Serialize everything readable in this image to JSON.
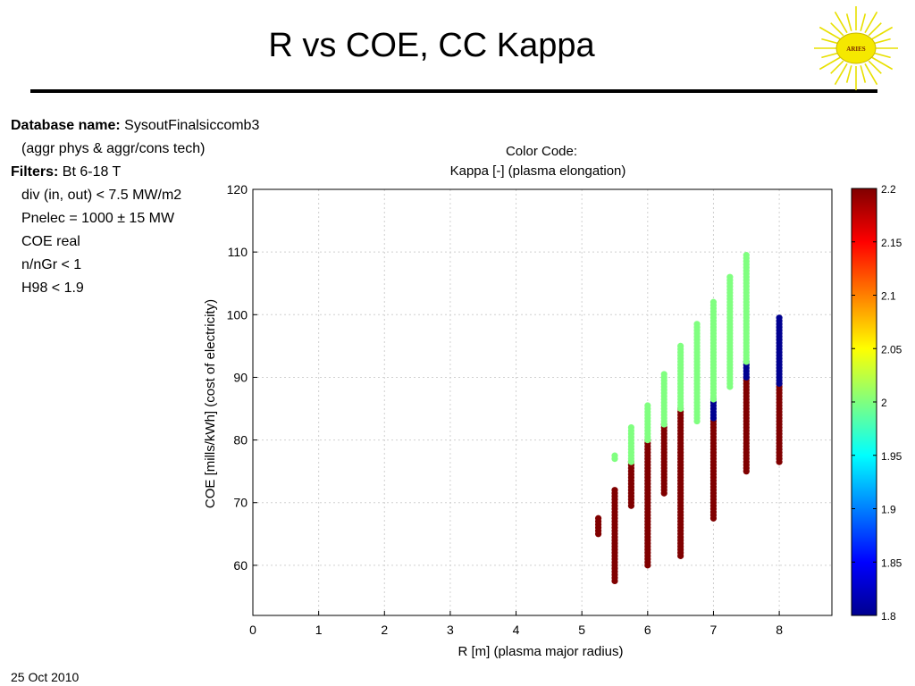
{
  "slide": {
    "title": "R vs COE, CC Kappa",
    "logo_text": "ARIES",
    "date": "25 Oct 2010"
  },
  "info": {
    "db_label": "Database name:",
    "db_value": "SysoutFinalsiccomb3",
    "db_note": "(aggr phys & aggr/cons tech)",
    "filters_label": "Filters:",
    "filters_first": "Bt 6-18 T",
    "filters": [
      "div (in, out) < 7.5 MW/m2",
      "Pnelec = 1000 ± 15 MW",
      "COE real",
      "n/nGr < 1",
      "H98 < 1.9"
    ]
  },
  "colors": {
    "high_kappa": "#800000",
    "mid_kappa": "#80ff80",
    "low_kappa": "#000090",
    "grid": "#d0d0d0"
  },
  "chart_data": {
    "type": "scatter",
    "title": "Color Code:",
    "subtitle": "Kappa [-] (plasma elongation)",
    "xlabel": "R [m] (plasma major radius)",
    "ylabel": "COE [mills/kWh] (cost of electricity)",
    "xlim": [
      0,
      8.8
    ],
    "ylim": [
      52,
      120
    ],
    "xticks": [
      0,
      1,
      2,
      3,
      4,
      5,
      6,
      7,
      8
    ],
    "yticks": [
      60,
      70,
      80,
      90,
      100,
      110,
      120
    ],
    "grid": true,
    "colorbar": {
      "label": "Kappa",
      "range": [
        1.8,
        2.2
      ],
      "ticks": [
        "2.2",
        "2.15",
        "2.1",
        "2.05",
        "2",
        "1.95",
        "1.9",
        "1.85",
        "1.8"
      ]
    },
    "columns": [
      {
        "x": 5.25,
        "segments": [
          {
            "kappa": 2.2,
            "ymin": 65.0,
            "ymax": 67.5
          }
        ]
      },
      {
        "x": 5.5,
        "segments": [
          {
            "kappa": 2.2,
            "ymin": 57.5,
            "ymax": 72.0
          },
          {
            "kappa": 2.0,
            "ymin": 77.0,
            "ymax": 77.5
          }
        ]
      },
      {
        "x": 5.75,
        "segments": [
          {
            "kappa": 2.2,
            "ymin": 69.5,
            "ymax": 76.5
          },
          {
            "kappa": 2.0,
            "ymin": 76.5,
            "ymax": 82.0
          }
        ]
      },
      {
        "x": 6.0,
        "segments": [
          {
            "kappa": 2.2,
            "ymin": 60.0,
            "ymax": 80.0
          },
          {
            "kappa": 2.0,
            "ymin": 80.0,
            "ymax": 85.5
          }
        ]
      },
      {
        "x": 6.25,
        "segments": [
          {
            "kappa": 2.2,
            "ymin": 71.5,
            "ymax": 82.5
          },
          {
            "kappa": 2.0,
            "ymin": 82.5,
            "ymax": 90.5
          }
        ]
      },
      {
        "x": 6.5,
        "segments": [
          {
            "kappa": 2.2,
            "ymin": 61.5,
            "ymax": 85.0
          },
          {
            "kappa": 2.0,
            "ymin": 85.0,
            "ymax": 95.0
          }
        ]
      },
      {
        "x": 6.75,
        "segments": [
          {
            "kappa": 2.0,
            "ymin": 83.0,
            "ymax": 98.5
          }
        ]
      },
      {
        "x": 7.0,
        "segments": [
          {
            "kappa": 2.2,
            "ymin": 67.5,
            "ymax": 83.5
          },
          {
            "kappa": 1.8,
            "ymin": 83.5,
            "ymax": 86.5
          },
          {
            "kappa": 2.0,
            "ymin": 86.5,
            "ymax": 102.0
          }
        ]
      },
      {
        "x": 7.25,
        "segments": [
          {
            "kappa": 2.0,
            "ymin": 88.5,
            "ymax": 106.0
          }
        ]
      },
      {
        "x": 7.5,
        "segments": [
          {
            "kappa": 2.2,
            "ymin": 75.0,
            "ymax": 90.0
          },
          {
            "kappa": 1.8,
            "ymin": 90.0,
            "ymax": 92.5
          },
          {
            "kappa": 2.0,
            "ymin": 92.5,
            "ymax": 109.5
          }
        ]
      },
      {
        "x": 8.0,
        "segments": [
          {
            "kappa": 2.2,
            "ymin": 76.5,
            "ymax": 89.0
          },
          {
            "kappa": 1.8,
            "ymin": 89.0,
            "ymax": 99.5
          }
        ]
      }
    ]
  }
}
